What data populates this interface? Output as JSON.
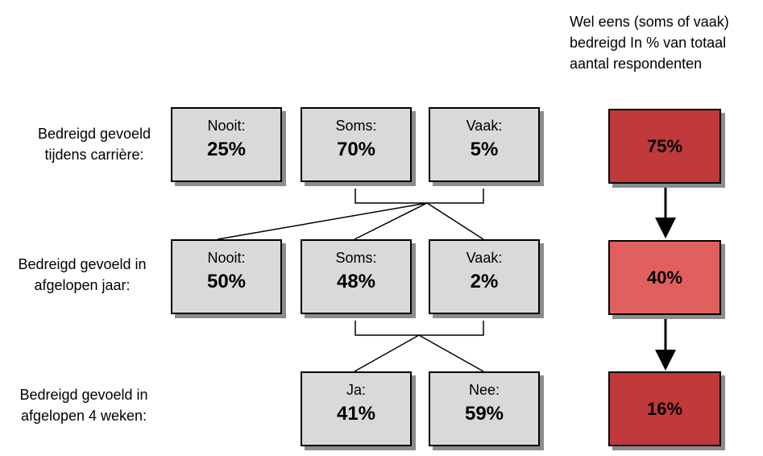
{
  "header": {
    "lines": [
      "Wel eens (soms of vaak)",
      "bedreigd In % van totaal",
      "aantal respondenten"
    ]
  },
  "rows": [
    {
      "label": [
        "Bedreigd gevoeld",
        "tijdens carrière:"
      ],
      "boxes": [
        {
          "label": "Nooit:",
          "value": "25%"
        },
        {
          "label": "Soms:",
          "value": "70%"
        },
        {
          "label": "Vaak:",
          "value": "5%"
        }
      ],
      "summary": "75%"
    },
    {
      "label": [
        "Bedreigd gevoeld in",
        "afgelopen jaar:"
      ],
      "boxes": [
        {
          "label": "Nooit:",
          "value": "50%"
        },
        {
          "label": "Soms:",
          "value": "48%"
        },
        {
          "label": "Vaak:",
          "value": "2%"
        }
      ],
      "summary": "40%"
    },
    {
      "label": [
        "Bedreigd gevoeld in",
        "afgelopen 4 weken:"
      ],
      "boxes": [
        {
          "label": "Ja:",
          "value": "41%"
        },
        {
          "label": "Nee:",
          "value": "59%"
        }
      ],
      "summary": "16%"
    }
  ],
  "colors": {
    "box_fill": "#d9d9d9",
    "summary_dark": "#c0393b",
    "summary_light": "#e06060",
    "shadow": "#8c8c8c"
  }
}
